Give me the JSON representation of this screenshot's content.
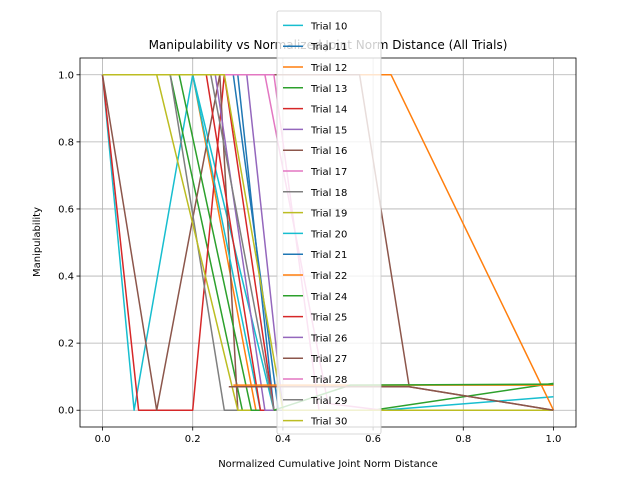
{
  "chart_data": {
    "type": "line",
    "title": "Manipulability vs Normalized Joint Norm Distance (All Trials)",
    "xlabel": "Normalized Cumulative Joint Norm Distance",
    "ylabel": "Manipulability",
    "xlim": [
      -0.05,
      1.05
    ],
    "ylim": [
      -0.05,
      1.05
    ],
    "x_ticks": [
      "0.0",
      "0.2",
      "0.4",
      "0.6",
      "0.8",
      "1.0"
    ],
    "y_ticks": [
      "0.0",
      "0.2",
      "0.4",
      "0.6",
      "0.8",
      "1.0"
    ],
    "grid": true,
    "legend_placement": "top-center",
    "series": [
      {
        "name": "Trial 10",
        "color": "#17becf",
        "x": [
          0.0,
          0.07,
          0.2,
          0.38,
          0.62,
          1.0
        ],
        "y": [
          1.0,
          0.0,
          1.0,
          0.0,
          0.0,
          0.04
        ]
      },
      {
        "name": "Trial 11",
        "color": "#1f77b4",
        "x": [
          0.0,
          0.3,
          0.38,
          0.62,
          1.0
        ],
        "y": [
          1.0,
          1.0,
          0.0,
          0.0,
          0.0
        ]
      },
      {
        "name": "Trial 12",
        "color": "#ff7f0e",
        "x": [
          0.0,
          0.2,
          0.34,
          0.6,
          1.0
        ],
        "y": [
          1.0,
          1.0,
          0.0,
          0.0,
          0.0
        ]
      },
      {
        "name": "Trial 13",
        "color": "#2ca02c",
        "x": [
          0.0,
          0.15,
          0.31,
          0.6,
          1.0
        ],
        "y": [
          1.0,
          1.0,
          0.0,
          0.0,
          0.08
        ]
      },
      {
        "name": "Trial 14",
        "color": "#d62728",
        "x": [
          0.0,
          0.08,
          0.14,
          0.2,
          0.27,
          0.38,
          0.62,
          1.0
        ],
        "y": [
          1.0,
          0.0,
          0.0,
          0.0,
          1.0,
          0.0,
          0.0,
          0.0
        ]
      },
      {
        "name": "Trial 15",
        "color": "#9467bd",
        "x": [
          0.0,
          0.32,
          0.4,
          0.62,
          1.0
        ],
        "y": [
          1.0,
          1.0,
          0.0,
          0.0,
          0.0
        ]
      },
      {
        "name": "Trial 16",
        "color": "#8c564b",
        "x": [
          0.0,
          0.12,
          0.26,
          0.3,
          0.58,
          1.0
        ],
        "y": [
          1.0,
          0.0,
          1.0,
          0.0,
          0.0,
          0.0
        ]
      },
      {
        "name": "Trial 17",
        "color": "#e377c2",
        "x": [
          0.0,
          0.36,
          0.5,
          0.62,
          1.0
        ],
        "y": [
          1.0,
          1.0,
          0.02,
          0.0,
          0.0
        ]
      },
      {
        "name": "Trial 18",
        "color": "#7f7f7f",
        "x": [
          0.0,
          0.15,
          0.27,
          0.5,
          1.0
        ],
        "y": [
          1.0,
          1.0,
          0.0,
          0.0,
          0.0
        ]
      },
      {
        "name": "Trial 19",
        "color": "#bcbd22",
        "x": [
          0.0,
          0.12,
          0.3,
          0.55,
          1.0
        ],
        "y": [
          1.0,
          1.0,
          0.0,
          0.0,
          0.0
        ]
      },
      {
        "name": "Trial 20",
        "color": "#17becf",
        "x": [
          0.0,
          0.2,
          0.35,
          0.62,
          1.0
        ],
        "y": [
          1.0,
          1.0,
          0.0,
          0.0,
          0.0
        ]
      },
      {
        "name": "Trial 21",
        "color": "#1f77b4",
        "x": [
          0.0,
          0.29,
          0.39,
          0.62,
          1.0
        ],
        "y": [
          1.0,
          1.0,
          0.0,
          0.0,
          0.0
        ]
      },
      {
        "name": "Trial 22",
        "color": "#ff7f0e",
        "x": [
          0.0,
          0.64,
          1.0
        ],
        "y": [
          1.0,
          1.0,
          0.0
        ]
      },
      {
        "name": "Trial 24",
        "color": "#2ca02c",
        "x": [
          0.0,
          0.17,
          0.33,
          0.6,
          1.0
        ],
        "y": [
          1.0,
          1.0,
          0.0,
          0.0,
          0.0
        ]
      },
      {
        "name": "Trial 25",
        "color": "#d62728",
        "x": [
          0.0,
          0.23,
          0.35,
          0.6,
          1.0
        ],
        "y": [
          1.0,
          1.0,
          0.0,
          0.0,
          0.0
        ]
      },
      {
        "name": "Trial 26",
        "color": "#9467bd",
        "x": [
          0.0,
          0.25,
          0.36,
          0.6,
          1.0
        ],
        "y": [
          1.0,
          1.0,
          0.0,
          0.0,
          0.0
        ]
      },
      {
        "name": "Trial 27",
        "color": "#8c564b",
        "x": [
          0.0,
          0.57,
          0.68,
          1.0
        ],
        "y": [
          1.0,
          1.0,
          0.07,
          0.0
        ]
      },
      {
        "name": "Trial 28",
        "color": "#e377c2",
        "x": [
          0.0,
          0.38,
          0.48,
          0.62,
          1.0
        ],
        "y": [
          1.0,
          1.0,
          0.0,
          0.0,
          0.0
        ]
      },
      {
        "name": "Trial 29",
        "color": "#7f7f7f",
        "x": [
          0.0,
          0.24,
          0.38,
          0.6,
          1.0
        ],
        "y": [
          1.0,
          1.0,
          0.0,
          0.0,
          0.0
        ]
      },
      {
        "name": "Trial 30",
        "color": "#bcbd22",
        "x": [
          0.0,
          0.27,
          0.4,
          0.6,
          1.0
        ],
        "y": [
          1.0,
          1.0,
          0.0,
          0.0,
          0.0
        ]
      }
    ],
    "extra_segments": [
      {
        "name": "plateau-orange",
        "color": "#ff7f0e",
        "x": [
          0.29,
          1.0
        ],
        "y": [
          0.075,
          0.075
        ]
      },
      {
        "name": "plateau-green",
        "color": "#2ca02c",
        "x": [
          0.38,
          0.55,
          1.0
        ],
        "y": [
          0.0,
          0.075,
          0.078
        ]
      },
      {
        "name": "plateau-brown",
        "color": "#8c564b",
        "x": [
          0.28,
          0.68,
          1.0
        ],
        "y": [
          0.07,
          0.07,
          0.0
        ]
      }
    ]
  }
}
